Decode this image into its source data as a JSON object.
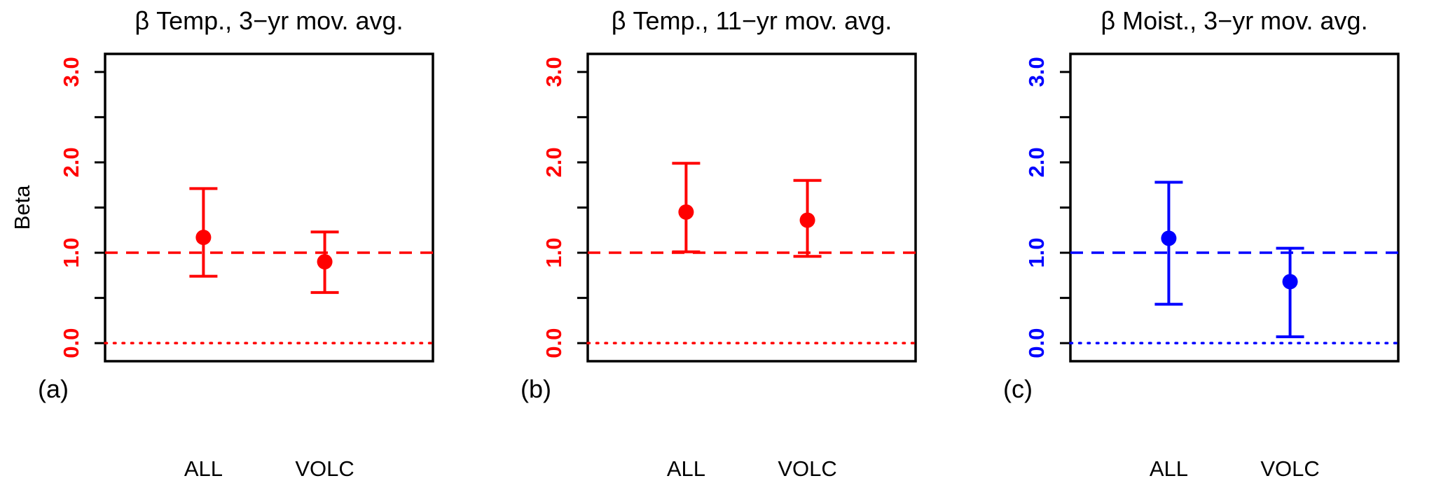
{
  "figure": {
    "ylabel": "Beta"
  },
  "colors": {
    "red": "#ff0000",
    "blue": "#0000ff",
    "black": "#000000"
  },
  "chart_data": [
    {
      "type": "scatter",
      "panel_label": "(a)",
      "title": "β Temp., 3−yr mov. avg.",
      "ylabel": "Beta",
      "color": "#ff0000",
      "categories": [
        "ALL",
        "VOLC"
      ],
      "values": [
        1.17,
        0.9
      ],
      "ci_low": [
        0.74,
        0.56
      ],
      "ci_high": [
        1.71,
        1.23
      ],
      "ylim": [
        -0.2,
        3.2
      ],
      "yticks": [
        0.0,
        1.0,
        2.0,
        3.0
      ],
      "ytick_labels": [
        "0.0",
        "1.0",
        "2.0",
        "3.0"
      ],
      "minor_ticks": [
        0.5,
        1.5,
        2.5
      ],
      "ref_lines": [
        {
          "y": 1.0,
          "style": "dashed"
        },
        {
          "y": 0.0,
          "style": "dotted"
        }
      ],
      "grid": false,
      "legend": "none"
    },
    {
      "type": "scatter",
      "panel_label": "(b)",
      "title": "β Temp., 11−yr mov. avg.",
      "ylabel": "",
      "color": "#ff0000",
      "categories": [
        "ALL",
        "VOLC"
      ],
      "values": [
        1.45,
        1.36
      ],
      "ci_low": [
        1.01,
        0.96
      ],
      "ci_high": [
        1.99,
        1.8
      ],
      "ylim": [
        -0.2,
        3.2
      ],
      "yticks": [
        0.0,
        1.0,
        2.0,
        3.0
      ],
      "ytick_labels": [
        "0.0",
        "1.0",
        "2.0",
        "3.0"
      ],
      "minor_ticks": [
        0.5,
        1.5,
        2.5
      ],
      "ref_lines": [
        {
          "y": 1.0,
          "style": "dashed"
        },
        {
          "y": 0.0,
          "style": "dotted"
        }
      ],
      "grid": false,
      "legend": "none"
    },
    {
      "type": "scatter",
      "panel_label": "(c)",
      "title": "β Moist., 3−yr mov. avg.",
      "ylabel": "",
      "color": "#0000ff",
      "categories": [
        "ALL",
        "VOLC"
      ],
      "values": [
        1.16,
        0.68
      ],
      "ci_low": [
        0.43,
        0.07
      ],
      "ci_high": [
        1.78,
        1.05
      ],
      "ylim": [
        -0.2,
        3.2
      ],
      "yticks": [
        0.0,
        1.0,
        2.0,
        3.0
      ],
      "ytick_labels": [
        "0.0",
        "1.0",
        "2.0",
        "3.0"
      ],
      "minor_ticks": [
        0.5,
        1.5,
        2.5
      ],
      "ref_lines": [
        {
          "y": 1.0,
          "style": "dashed"
        },
        {
          "y": 0.0,
          "style": "dotted"
        }
      ],
      "grid": false,
      "legend": "none"
    }
  ]
}
